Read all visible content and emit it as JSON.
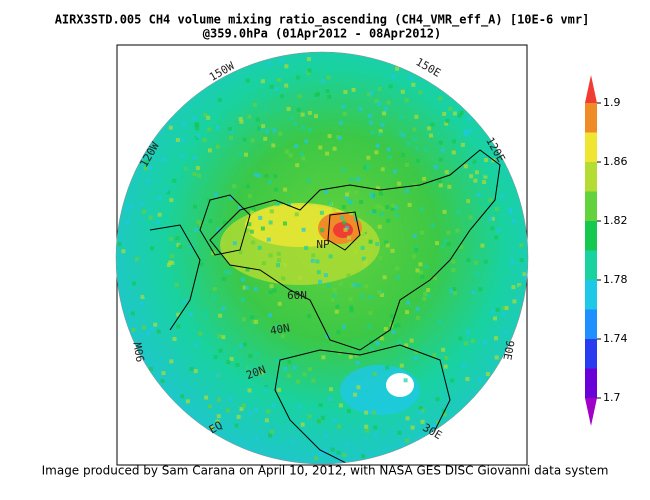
{
  "map": {
    "title": "AIRX3STD.005 CH4 volume mixing ratio_ascending (CH4_VMR_eff_A) [10E-6 vmr]",
    "subtitle": "@359.0hPa (01Apr2012 - 08Apr2012)",
    "labels": [
      "150W",
      "150E",
      "120W",
      "120E",
      "90W",
      "90E",
      "NP",
      "60N",
      "40N",
      "20N",
      "EQ",
      "30E"
    ],
    "colorbar": {
      "levels": [
        1.7,
        1.72,
        1.74,
        1.76,
        1.78,
        1.8,
        1.82,
        1.84,
        1.86,
        1.88,
        1.9
      ],
      "colors": [
        "#6a00d8",
        "#2a3cf0",
        "#1e90ff",
        "#1ec8e6",
        "#19d2a0",
        "#14c850",
        "#64d23c",
        "#b4dc32",
        "#f0e632",
        "#f08c28"
      ],
      "under_color": "#a000c8",
      "over_color": "#f03c32",
      "ticks": [
        1.7,
        1.74,
        1.78,
        1.82,
        1.86,
        1.9
      ]
    },
    "caption": "Image produced by Sam Carana on April 10, 2012, with NASA GES DISC Giovanni data system"
  }
}
